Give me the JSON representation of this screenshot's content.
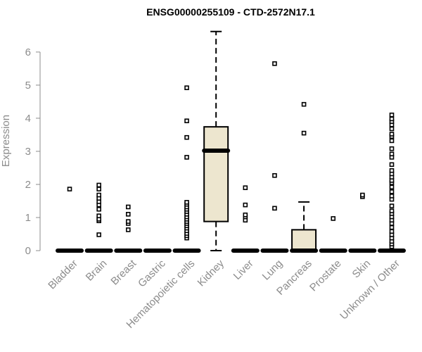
{
  "chart_data": {
    "type": "boxplot",
    "title": "ENSG00000255109 - CTD-2572N17.1",
    "xlabel": "",
    "ylabel": "Expression",
    "ylim": [
      0,
      6.7
    ],
    "yticks": [
      0,
      1,
      2,
      3,
      4,
      5,
      6
    ],
    "grid": false,
    "categories": [
      "Bladder",
      "Brain",
      "Breast",
      "Gastric",
      "Hematopoietic cells",
      "Kidney",
      "Liver",
      "Lung",
      "Pancreas",
      "Prostate",
      "Skin",
      "Unknown / Other"
    ],
    "boxes": [
      {
        "category": "Bladder",
        "min": 0,
        "q1": 0,
        "median": 0,
        "q3": 0,
        "max": 0,
        "outliers": [
          1.86
        ]
      },
      {
        "category": "Brain",
        "min": 0,
        "q1": 0,
        "median": 0,
        "q3": 0,
        "max": 0,
        "outliers": [
          0.48,
          0.9,
          0.95,
          1.05,
          1.25,
          1.38,
          1.48,
          1.58,
          1.68,
          1.86,
          1.98
        ]
      },
      {
        "category": "Breast",
        "min": 0,
        "q1": 0,
        "median": 0,
        "q3": 0,
        "max": 0,
        "outliers": [
          0.63,
          0.82,
          0.88,
          1.1,
          1.32
        ]
      },
      {
        "category": "Gastric",
        "min": 0,
        "q1": 0,
        "median": 0,
        "q3": 0,
        "max": 0,
        "outliers": []
      },
      {
        "category": "Hematopoietic cells",
        "min": 0,
        "q1": 0,
        "median": 0,
        "q3": 0,
        "max": 0,
        "outliers": [
          0.38,
          0.45,
          0.52,
          0.6,
          0.68,
          0.75,
          0.82,
          0.88,
          0.95,
          1.02,
          1.1,
          1.18,
          1.25,
          1.32,
          1.4,
          1.46,
          2.82,
          3.42,
          3.92,
          4.92
        ]
      },
      {
        "category": "Kidney",
        "min": 0,
        "q1": 0.88,
        "median": 3.02,
        "q3": 3.74,
        "max": 6.62,
        "outliers": []
      },
      {
        "category": "Liver",
        "min": 0,
        "q1": 0,
        "median": 0,
        "q3": 0,
        "max": 0,
        "outliers": [
          0.92,
          1.02,
          1.08,
          1.38,
          1.9
        ]
      },
      {
        "category": "Lung",
        "min": 0,
        "q1": 0,
        "median": 0,
        "q3": 0,
        "max": 0,
        "outliers": [
          1.28,
          2.27,
          5.65
        ]
      },
      {
        "category": "Pancreas",
        "min": 0,
        "q1": 0,
        "median": 0,
        "q3": 0.63,
        "max": 1.47,
        "outliers": [
          3.55,
          4.42
        ]
      },
      {
        "category": "Prostate",
        "min": 0,
        "q1": 0,
        "median": 0,
        "q3": 0,
        "max": 0,
        "outliers": [
          0.97
        ]
      },
      {
        "category": "Skin",
        "min": 0,
        "q1": 0,
        "median": 0,
        "q3": 0,
        "max": 0,
        "outliers": [
          1.63,
          1.68
        ]
      },
      {
        "category": "Unknown / Other",
        "min": 0,
        "q1": 0,
        "median": 0,
        "q3": 0,
        "max": 0,
        "outliers": [
          0.12,
          0.2,
          0.28,
          0.38,
          0.48,
          0.58,
          0.7,
          0.82,
          0.92,
          1.02,
          1.12,
          1.2,
          1.35,
          1.55,
          1.65,
          1.78,
          1.92,
          2.05,
          2.12,
          2.22,
          2.32,
          2.42,
          2.6,
          2.82,
          2.92,
          3.08,
          3.32,
          3.45,
          3.52,
          3.68,
          3.8,
          3.9,
          3.98,
          4.1
        ]
      }
    ],
    "colors": {
      "box_fill": "#ede6cf",
      "box_stroke": "#000000",
      "axis": "#8c8c8c",
      "title": "#000000"
    }
  }
}
